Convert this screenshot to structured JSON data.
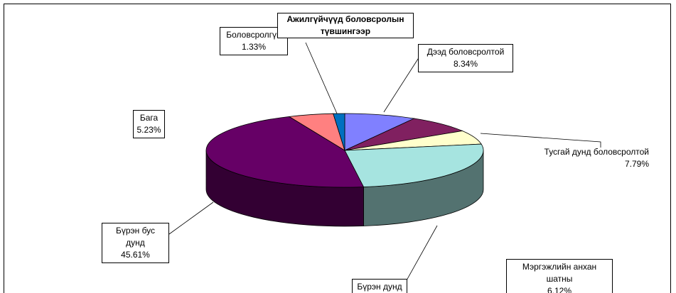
{
  "chart_data": {
    "type": "pie3d",
    "title": "Ажилгүйчүүд боловсролын түвшингээр",
    "categories": [
      "Дээд боловсролтой",
      "Тусгай дунд боловсролтой",
      "Мэргэжлийн анхан шатны",
      "Бүрэн дунд",
      "Бүрэн бус дунд",
      "Бага",
      "Боловсролгүй"
    ],
    "values": [
      8.34,
      7.79,
      6.12,
      25.58,
      45.61,
      5.23,
      1.33
    ],
    "value_labels": [
      "8.34%",
      "7.79%",
      "6.12%",
      null,
      "45.61%",
      "5.23%",
      "1.33%"
    ],
    "colors": [
      "#8080ff",
      "#802060",
      "#ffffcc",
      "#a6e4e0",
      "#660066",
      "#ff8080",
      "#0070c0"
    ]
  }
}
